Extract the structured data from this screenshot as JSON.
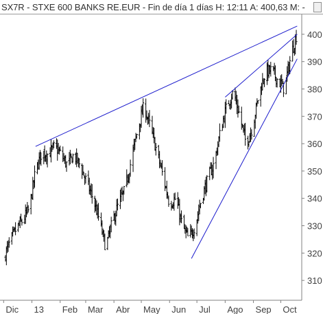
{
  "header": {
    "title": "SX7R - STXE 600 BANKS RE.EUR - Fin de día 1 días  H: 12:11  A: 400,63  M: -"
  },
  "colors": {
    "price": "#000000",
    "trendline": "#1a1acc",
    "axis": "#808080",
    "background": "#ffffff"
  },
  "chart_data": {
    "type": "ohlc",
    "title": "",
    "xlabel": "",
    "ylabel": "",
    "ylim": [
      303,
      407
    ],
    "y_ticks": [
      310,
      320,
      330,
      340,
      350,
      360,
      370,
      380,
      390,
      400
    ],
    "x_ticks": [
      "Dic",
      "13",
      "Feb",
      "Mar",
      "Abr",
      "May",
      "Jun",
      "Jul",
      "Ago",
      "Sep",
      "Oct"
    ],
    "grid": false,
    "series": [
      {
        "x": [
          "2012-12-01",
          "2012-12-08",
          "2012-12-15",
          "2012-12-22",
          "2012-12-29",
          "2013-01-05",
          "2013-01-12",
          "2013-01-19",
          "2013-01-26",
          "2013-02-02",
          "2013-02-09",
          "2013-02-16",
          "2013-02-23",
          "2013-03-02",
          "2013-03-09",
          "2013-03-16",
          "2013-03-23",
          "2013-03-30",
          "2013-04-06",
          "2013-04-13",
          "2013-04-20",
          "2013-04-27",
          "2013-05-04",
          "2013-05-11",
          "2013-05-18",
          "2013-05-25",
          "2013-06-01",
          "2013-06-08",
          "2013-06-15",
          "2013-06-22",
          "2013-06-29",
          "2013-07-06",
          "2013-07-13",
          "2013-07-20",
          "2013-07-27",
          "2013-08-03",
          "2013-08-10",
          "2013-08-17",
          "2013-08-24",
          "2013-08-31",
          "2013-09-07",
          "2013-09-14",
          "2013-09-21",
          "2013-09-28",
          "2013-10-05",
          "2013-10-12",
          "2013-10-19"
        ],
        "values": [
          318,
          324,
          329,
          332,
          336,
          350,
          357,
          356,
          359,
          356,
          352,
          356,
          352,
          346,
          340,
          332,
          322,
          331,
          338,
          343,
          354,
          365,
          374,
          366,
          357,
          348,
          338,
          340,
          330,
          325,
          330,
          340,
          347,
          353,
          365,
          374,
          379,
          370,
          360,
          366,
          378,
          386,
          387,
          383,
          380,
          392,
          400.63
        ]
      }
    ],
    "trendlines": [
      {
        "from": [
          "2013-01-05",
          359
        ],
        "to": [
          "2013-10-19",
          403
        ]
      },
      {
        "from": [
          "2013-06-25",
          318
        ],
        "to": [
          "2013-10-19",
          391
        ]
      },
      {
        "from": [
          "2013-08-01",
          377
        ],
        "to": [
          "2013-10-19",
          400
        ]
      }
    ]
  }
}
